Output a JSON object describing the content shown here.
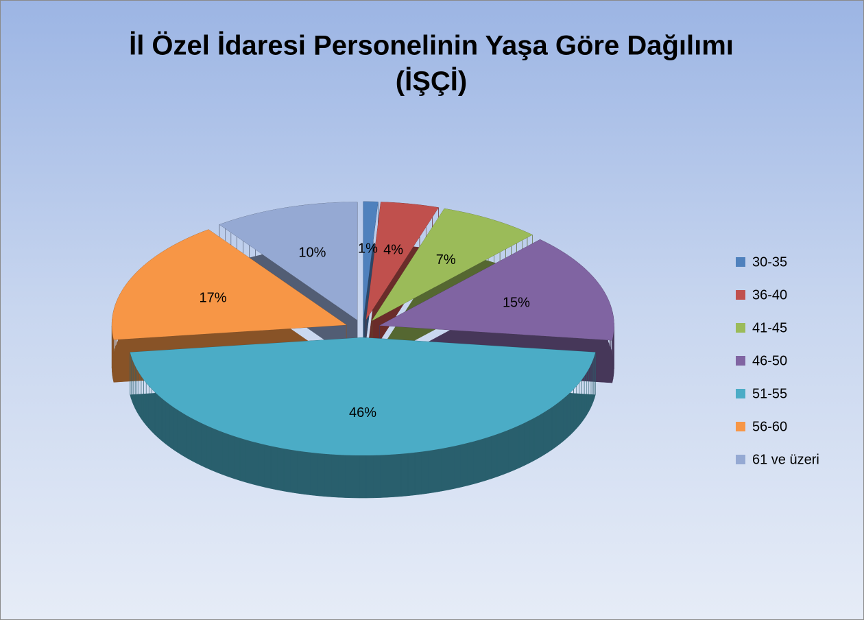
{
  "chart_data": {
    "type": "pie3d",
    "title": [
      "İl Özel İdaresi Personelinin Yaşa Göre Dağılımı",
      "(İŞÇİ)"
    ],
    "categories": [
      "30-35",
      "36-40",
      "41-45",
      "46-50",
      "51-55",
      "56-60",
      "61 ve üzeri"
    ],
    "values": [
      1,
      4,
      7,
      15,
      46,
      17,
      10
    ],
    "value_labels": [
      "1%",
      "4%",
      "7%",
      "15%",
      "46%",
      "17%",
      "10%"
    ],
    "colors": [
      "#4f81bd",
      "#c0504d",
      "#9bbb59",
      "#8064a2",
      "#4bacc6",
      "#f79646",
      "#95a9d3"
    ],
    "legend": "right"
  }
}
